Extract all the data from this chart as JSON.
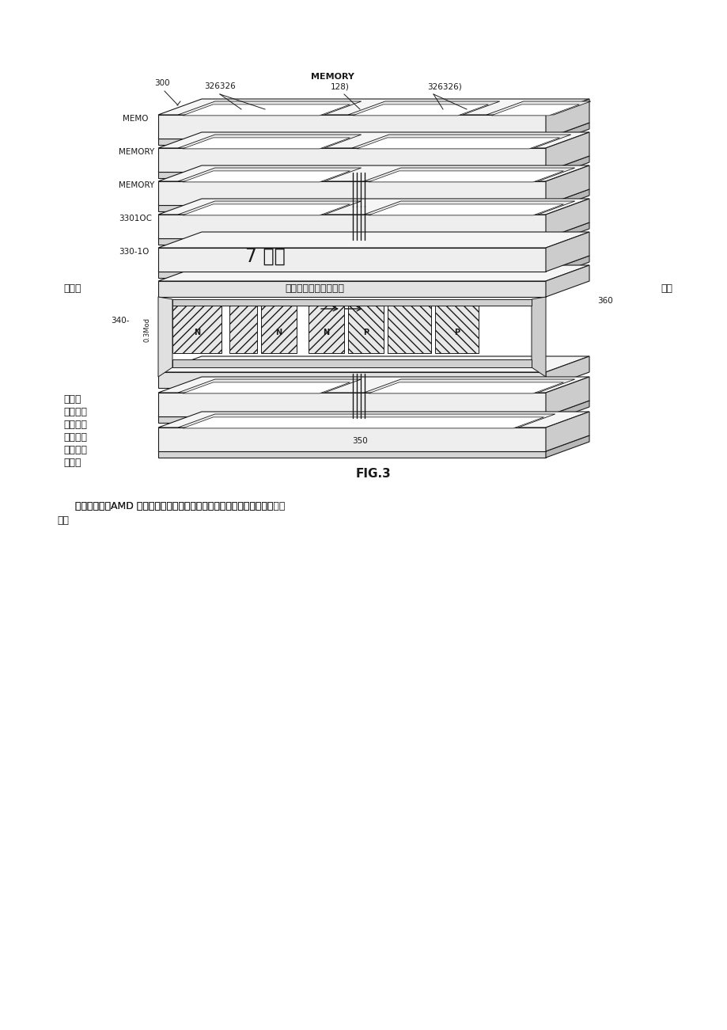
{
  "page_bg": "#ffffff",
  "fig_width": 9.2,
  "fig_height": 13.01,
  "dpi": 100,
  "lc": "#1a1a1a",
  "fc_chip": "#eeeeee",
  "fc_chip_top": "#f5f5f5",
  "fc_right": "#cccccc",
  "fc_slot": "#ffffff",
  "fc_tec_base": "#e0e0e0",
  "title_label": "MEMORY",
  "fig_label": "FIG.3",
  "ref_300": "300",
  "ref_326326_1": "326326",
  "ref_128": "128)",
  "ref_326326_2": "326326)",
  "ref_memo": "MEMO",
  "ref_memory1": "MEMORY",
  "ref_memory2": "MEMORY",
  "ref_3301oc": "3301OC",
  "ref_330_1o": "330-1O",
  "ref_340": "340-",
  "ref_360": "360",
  "ref_350": "350",
  "ref_03mod": "0.3Mod",
  "chinese_1": "不过也",
  "chinese_2": "青榘，比如会不会导到",
  "chinese_3": "温度",
  "chinese_4": "7 呢啊",
  "chinese_5_1": "都比较",
  "chinese_5_2": "高？热电",
  "chinese_5_3": "偶本身也",
  "chinese_5_4": "会耗电发",
  "chinese_5_5": "热又如何",
  "chinese_5_6": "处理？",
  "chinese_6": "但总的来说，AMD 的这个思路非常新奇巧妙，未来或许会有很光明的前景。"
}
